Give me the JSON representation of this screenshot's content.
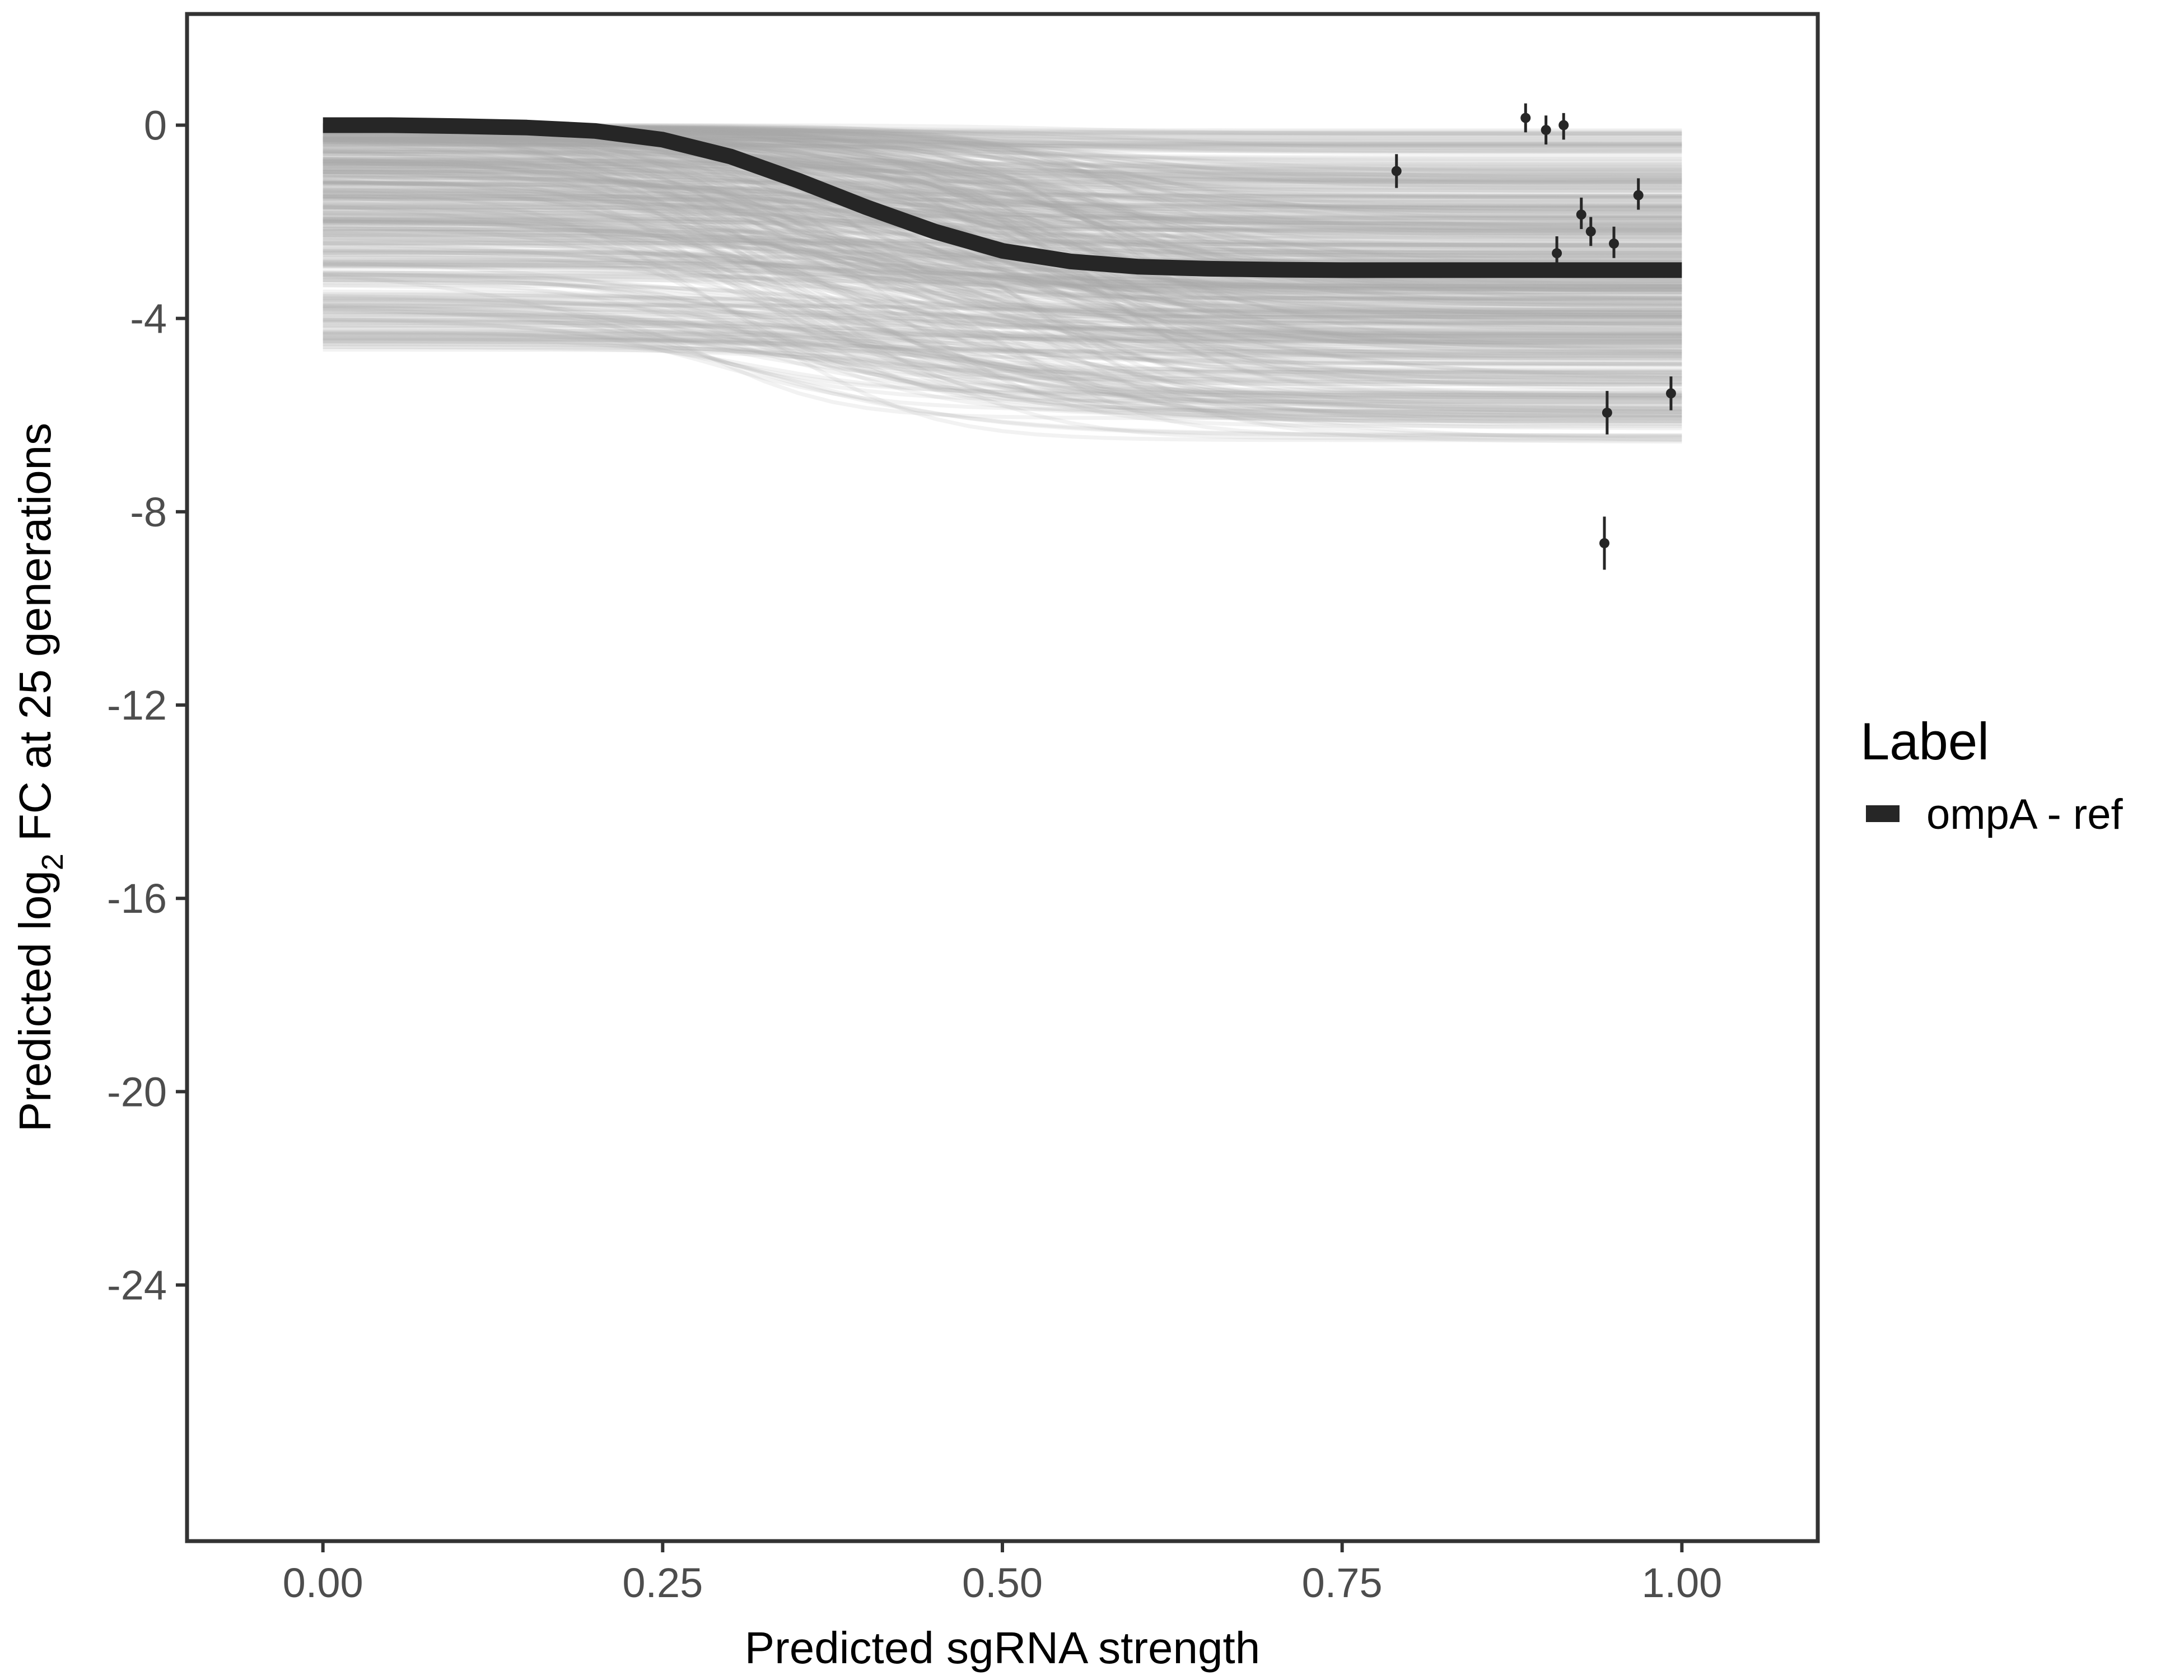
{
  "chart_data": {
    "type": "line",
    "xlabel": "Predicted sgRNA strength",
    "ylabel_parts": {
      "before": "Predicted  log",
      "subscript": "2",
      "after": " FC at 25 generations"
    },
    "xlim": [
      -0.1,
      1.1
    ],
    "ylim": [
      -29.3,
      2.3
    ],
    "x_ticks": [
      0.0,
      0.25,
      0.5,
      0.75,
      1.0
    ],
    "x_tick_labels": [
      "0.00",
      "0.25",
      "0.50",
      "0.75",
      "1.00"
    ],
    "y_ticks": [
      0,
      -4,
      -8,
      -12,
      -16,
      -20,
      -24
    ],
    "y_tick_labels": [
      "0",
      "-4",
      "-8",
      "-12",
      "-16",
      "-20",
      "-24"
    ],
    "grid": false,
    "legend": {
      "title": "Label",
      "position": "right",
      "entries": [
        {
          "label": "ompA - ref",
          "color": "#262626"
        }
      ]
    },
    "series": [
      {
        "name": "ompA - ref",
        "color": "#262626",
        "x": [
          0.0,
          0.05,
          0.1,
          0.15,
          0.2,
          0.25,
          0.3,
          0.35,
          0.4,
          0.45,
          0.5,
          0.55,
          0.6,
          0.65,
          0.7,
          0.75,
          0.8,
          0.85,
          0.9,
          0.95,
          1.0
        ],
        "y": [
          0.0,
          0.0,
          -0.02,
          -0.05,
          -0.12,
          -0.3,
          -0.65,
          -1.15,
          -1.7,
          -2.2,
          -2.6,
          -2.82,
          -2.93,
          -2.97,
          -2.99,
          -3.0,
          -3.0,
          -3.0,
          -3.0,
          -3.0,
          -3.0
        ]
      }
    ],
    "posterior_draws": {
      "color": "#a6a6a6",
      "count": 500,
      "x_range": [
        0.0,
        1.0
      ],
      "y_at_x0_range": [
        -4.7,
        0.0
      ],
      "y_at_x1_range": [
        -6.6,
        -0.1
      ]
    },
    "observed_points": {
      "color": "#262626",
      "points": [
        {
          "x": 0.79,
          "y": -0.95,
          "ylo": -1.3,
          "yhi": -0.6
        },
        {
          "x": 0.885,
          "y": 0.15,
          "ylo": -0.15,
          "yhi": 0.45
        },
        {
          "x": 0.9,
          "y": -0.1,
          "ylo": -0.4,
          "yhi": 0.2
        },
        {
          "x": 0.913,
          "y": 0.0,
          "ylo": -0.3,
          "yhi": 0.25
        },
        {
          "x": 0.908,
          "y": -2.65,
          "ylo": -2.95,
          "yhi": -2.3
        },
        {
          "x": 0.926,
          "y": -1.85,
          "ylo": -2.15,
          "yhi": -1.5
        },
        {
          "x": 0.933,
          "y": -2.2,
          "ylo": -2.5,
          "yhi": -1.9
        },
        {
          "x": 0.95,
          "y": -2.45,
          "ylo": -2.75,
          "yhi": -2.1
        },
        {
          "x": 0.968,
          "y": -1.45,
          "ylo": -1.75,
          "yhi": -1.1
        },
        {
          "x": 0.945,
          "y": -5.95,
          "ylo": -6.4,
          "yhi": -5.5
        },
        {
          "x": 0.943,
          "y": -8.65,
          "ylo": -9.2,
          "yhi": -8.1
        },
        {
          "x": 0.992,
          "y": -5.55,
          "ylo": -5.9,
          "yhi": -5.2
        }
      ]
    }
  }
}
